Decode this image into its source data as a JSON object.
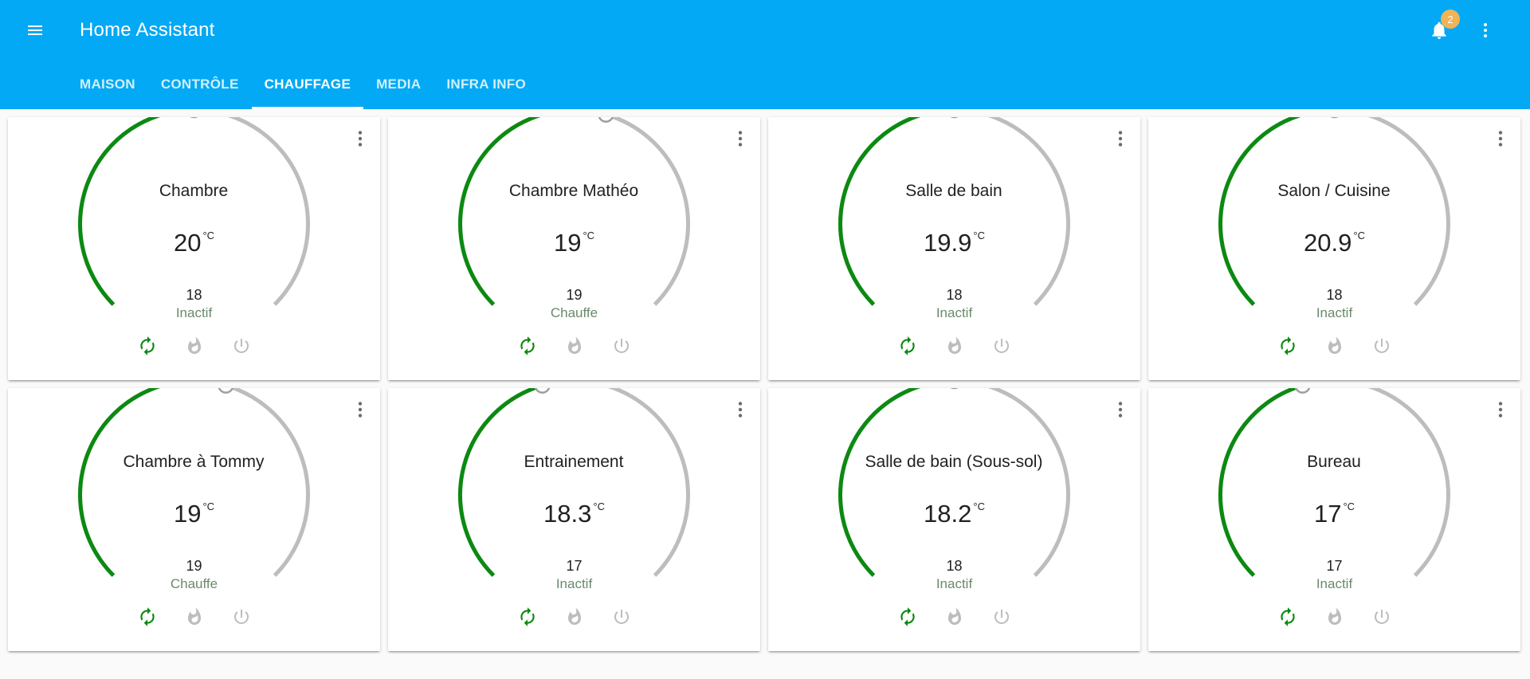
{
  "app": {
    "title": "Home Assistant"
  },
  "icons": {
    "menu": "menu-icon",
    "bell": "bell-icon",
    "more": "dots-vertical-icon",
    "auto": "autorenew-icon",
    "heat": "fire-icon",
    "off": "power-icon"
  },
  "notifications": {
    "count": "2"
  },
  "tabs": [
    {
      "label": "MAISON",
      "active": false
    },
    {
      "label": "CONTRÔLE",
      "active": false
    },
    {
      "label": "CHAUFFAGE",
      "active": true
    },
    {
      "label": "MEDIA",
      "active": false
    },
    {
      "label": "INFRA INFO",
      "active": false
    }
  ],
  "colors": {
    "header": "#03a9f4",
    "gauge_fill": "#0b8a11",
    "gauge_track": "#bdbdbd",
    "mode_active": "#0b8a11",
    "mode_inactive": "#bdbdbd",
    "badge": "#f0b356"
  },
  "thermostats": [
    {
      "name": "Chambre",
      "current": "20",
      "unit": "°C",
      "target": "18",
      "status": "Inactif",
      "setpoint_fraction": 0.5
    },
    {
      "name": "Chambre Mathéo",
      "current": "19",
      "unit": "°C",
      "target": "19",
      "status": "Chauffe",
      "setpoint_fraction": 0.56
    },
    {
      "name": "Salle de bain",
      "current": "19.9",
      "unit": "°C",
      "target": "18",
      "status": "Inactif",
      "setpoint_fraction": 0.5
    },
    {
      "name": "Salon / Cuisine",
      "current": "20.9",
      "unit": "°C",
      "target": "18",
      "status": "Inactif",
      "setpoint_fraction": 0.5
    },
    {
      "name": "Chambre à Tommy",
      "current": "19",
      "unit": "°C",
      "target": "19",
      "status": "Chauffe",
      "setpoint_fraction": 0.56
    },
    {
      "name": "Entrainement",
      "current": "18.3",
      "unit": "°C",
      "target": "17",
      "status": "Inactif",
      "setpoint_fraction": 0.44
    },
    {
      "name": "Salle de bain (Sous-sol)",
      "current": "18.2",
      "unit": "°C",
      "target": "18",
      "status": "Inactif",
      "setpoint_fraction": 0.5
    },
    {
      "name": "Bureau",
      "current": "17",
      "unit": "°C",
      "target": "17",
      "status": "Inactif",
      "setpoint_fraction": 0.44
    }
  ]
}
